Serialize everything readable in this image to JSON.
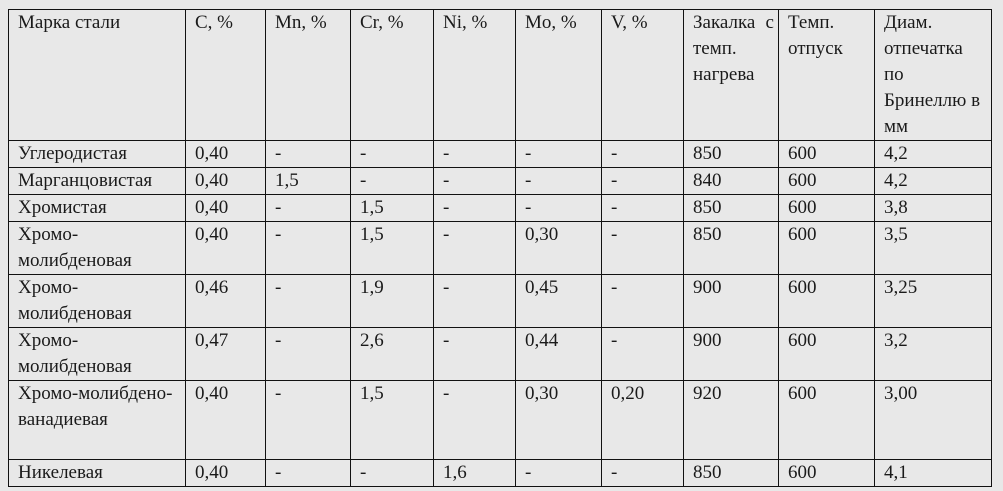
{
  "table": {
    "headers": [
      "Марка стали",
      "C, %",
      "Mn, %",
      "Cr, %",
      "Ni, %",
      "Mo, %",
      "V, %",
      "Закалка с темп. нагрева",
      "Темп. отпуск",
      "Диам. отпечатка по Бринеллю в мм"
    ],
    "rows": [
      [
        "Углеродистая",
        "0,40",
        "-",
        "-",
        "-",
        "-",
        "-",
        "850",
        "600",
        "4,2"
      ],
      [
        "Марганцовистая",
        "0,40",
        "1,5",
        "-",
        "-",
        "-",
        "-",
        "840",
        "600",
        "4,2"
      ],
      [
        "Хромистая",
        "0,40",
        "-",
        "1,5",
        "-",
        "-",
        "-",
        "850",
        "600",
        "3,8"
      ],
      [
        "Хромо-молибденовая",
        "0,40",
        "-",
        "1,5",
        "-",
        "0,30",
        "-",
        "850",
        "600",
        "3,5"
      ],
      [
        "Хромо-молибденовая",
        "0,46",
        "-",
        "1,9",
        "-",
        "0,45",
        "-",
        "900",
        "600",
        "3,25"
      ],
      [
        "Хромо-молибденовая",
        "0,47",
        "-",
        "2,6",
        "-",
        "0,44",
        "-",
        "900",
        "600",
        "3,2"
      ],
      [
        "Хромо-молибдено-ванадиевая",
        "0,40",
        "-",
        "1,5",
        "-",
        "0,30",
        "0,20",
        "920",
        "600",
        "3,00"
      ],
      [
        "Никелевая",
        "0,40",
        "-",
        "-",
        "1,6",
        "-",
        "-",
        "850",
        "600",
        "4,1"
      ]
    ]
  }
}
